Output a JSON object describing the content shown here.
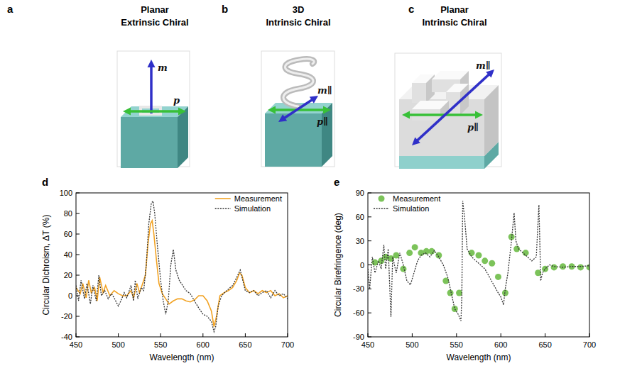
{
  "panels": [
    {
      "letter": "a",
      "title": [
        "Planar",
        "Extrinsic Chiral"
      ],
      "vectors": [
        "m",
        "p"
      ]
    },
    {
      "letter": "b",
      "title": [
        "3D",
        "Intrinsic Chiral"
      ],
      "vectors": [
        "m∥",
        "p∥"
      ]
    },
    {
      "letter": "c",
      "title": [
        "Planar",
        "Intrinsic Chiral"
      ],
      "vectors": [
        "m∥",
        "p∥"
      ]
    }
  ],
  "chart_data": [
    {
      "panel": "d",
      "type": "line",
      "x_label": "Wavelength (nm)",
      "y_label": "Circular Dichroism, ΔT (%)",
      "xlim": [
        450,
        700
      ],
      "xticks": [
        450,
        500,
        550,
        600,
        650,
        700
      ],
      "ylim": [
        -40,
        100
      ],
      "yticks": [
        -40,
        -20,
        0,
        20,
        40,
        60,
        80,
        100
      ],
      "grid": false,
      "legend": "top-right",
      "series": [
        {
          "name": "Measurement",
          "color": "#f2a324",
          "line_style": "solid",
          "x": [
            450,
            455,
            458,
            462,
            465,
            468,
            472,
            475,
            478,
            482,
            485,
            490,
            495,
            500,
            505,
            510,
            515,
            518,
            522,
            525,
            528,
            532,
            535,
            538,
            540,
            542,
            545,
            548,
            552,
            556,
            560,
            565,
            570,
            575,
            580,
            585,
            590,
            595,
            600,
            605,
            610,
            613,
            616,
            620,
            625,
            630,
            635,
            640,
            643,
            646,
            650,
            655,
            660,
            665,
            670,
            675,
            680,
            685,
            690,
            695,
            700
          ],
          "values": [
            8,
            2,
            12,
            -2,
            15,
            3,
            8,
            -5,
            18,
            3,
            10,
            0,
            5,
            2,
            0,
            0,
            5,
            -2,
            12,
            3,
            10,
            20,
            50,
            70,
            73,
            60,
            35,
            12,
            2,
            -3,
            -8,
            -5,
            -3,
            -3,
            -5,
            -6,
            -4,
            0,
            0,
            -5,
            -15,
            -30,
            -20,
            0,
            3,
            5,
            8,
            15,
            22,
            20,
            8,
            3,
            5,
            2,
            5,
            3,
            5,
            0,
            2,
            -2,
            0
          ]
        },
        {
          "name": "Simulation",
          "color": "#333333",
          "line_style": "dotted",
          "x": [
            450,
            453,
            456,
            460,
            463,
            467,
            470,
            474,
            477,
            480,
            484,
            488,
            492,
            495,
            500,
            503,
            507,
            510,
            515,
            518,
            520,
            523,
            527,
            530,
            533,
            536,
            539,
            541,
            543,
            546,
            550,
            553,
            556,
            559,
            562,
            565,
            568,
            572,
            576,
            580,
            585,
            590,
            595,
            600,
            605,
            610,
            613,
            615,
            618,
            622,
            628,
            635,
            640,
            644,
            647,
            650,
            655,
            660,
            665,
            670,
            675,
            680,
            685,
            690,
            695,
            700
          ],
          "values": [
            10,
            -5,
            15,
            -3,
            12,
            -8,
            10,
            -5,
            20,
            0,
            5,
            -3,
            2,
            -2,
            -10,
            -5,
            3,
            -2,
            10,
            -5,
            15,
            -3,
            8,
            5,
            30,
            70,
            90,
            92,
            80,
            50,
            15,
            -5,
            -18,
            -5,
            30,
            45,
            25,
            15,
            10,
            5,
            2,
            -5,
            -12,
            -18,
            -20,
            -25,
            -35,
            -30,
            -10,
            0,
            5,
            10,
            18,
            25,
            15,
            5,
            3,
            5,
            0,
            3,
            5,
            -2,
            5,
            0,
            2,
            -3
          ]
        }
      ]
    },
    {
      "panel": "e",
      "type": "line",
      "x_label": "Wavelength (nm)",
      "y_label": "Circular Birefringence (deg)",
      "xlim": [
        450,
        700
      ],
      "xticks": [
        450,
        500,
        550,
        600,
        650,
        700
      ],
      "ylim": [
        -90,
        90
      ],
      "yticks": [
        -90,
        -60,
        -30,
        0,
        30,
        60,
        90
      ],
      "grid": false,
      "legend": "top-left",
      "series": [
        {
          "name": "Measurement",
          "type": "scatter",
          "marker": "circle",
          "color": "#7cc35a",
          "x": [
            458,
            465,
            470,
            476,
            482,
            490,
            497,
            503,
            510,
            516,
            522,
            530,
            538,
            543,
            548,
            553,
            567,
            575,
            582,
            590,
            597,
            605,
            612,
            618,
            628,
            642,
            650,
            660,
            670,
            680,
            690,
            700
          ],
          "values": [
            3,
            5,
            10,
            8,
            12,
            -5,
            15,
            22,
            15,
            17,
            17,
            12,
            -20,
            -35,
            -55,
            -35,
            15,
            12,
            5,
            2,
            -15,
            -35,
            35,
            20,
            15,
            -10,
            -5,
            -3,
            -2,
            -2,
            -3,
            -3
          ]
        },
        {
          "name": "Simulation",
          "type": "line",
          "color": "#333333",
          "line_style": "dotted",
          "x": [
            450,
            452,
            455,
            458,
            462,
            465,
            468,
            470,
            473,
            476,
            478,
            482,
            486,
            490,
            494,
            498,
            502,
            506,
            510,
            515,
            520,
            525,
            530,
            535,
            540,
            545,
            548,
            552,
            555,
            556,
            557,
            559,
            562,
            567,
            572,
            577,
            582,
            587,
            592,
            597,
            600,
            603,
            605,
            608,
            612,
            615,
            617,
            620,
            625,
            630,
            635,
            640,
            643,
            645,
            647,
            650,
            655,
            660,
            670,
            680,
            690,
            700
          ],
          "values": [
            -5,
            -30,
            10,
            -10,
            5,
            -5,
            25,
            -5,
            20,
            -65,
            10,
            -10,
            15,
            0,
            -20,
            -25,
            -10,
            5,
            12,
            15,
            10,
            18,
            10,
            0,
            -15,
            -40,
            -55,
            -62,
            -70,
            -40,
            80,
            60,
            20,
            10,
            5,
            0,
            -5,
            -15,
            -25,
            -35,
            -40,
            -50,
            -30,
            -10,
            30,
            65,
            30,
            20,
            15,
            10,
            5,
            10,
            75,
            -20,
            -10,
            -5,
            0,
            -2,
            -3,
            -2,
            -2,
            -1
          ]
        }
      ]
    }
  ]
}
